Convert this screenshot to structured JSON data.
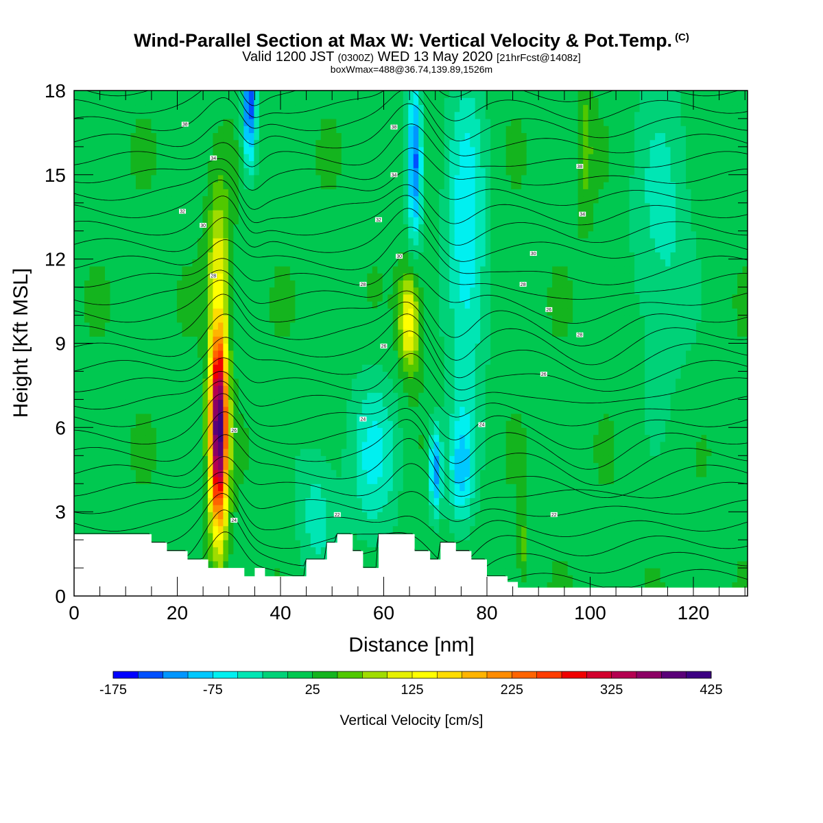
{
  "header": {
    "title": "Wind-Parallel Section at Max W: Vertical Velocity & Pot.Temp.",
    "copyright": "(C)",
    "valid_prefix": "Valid 1200 JST",
    "valid_utc": "(0300Z)",
    "valid_date": "WED 13 May 2020",
    "forecast_info": "[21hrFcst@1408z]",
    "box_info": "boxWmax=488@36.74,139.89,1526m"
  },
  "chart_data": {
    "type": "heatmap",
    "xlabel": "Distance [nm]",
    "ylabel": "Height [Kft MSL]",
    "xlim": [
      0,
      130.5
    ],
    "ylim": [
      0,
      18
    ],
    "x_ticks": [
      0,
      20,
      40,
      60,
      80,
      100,
      120
    ],
    "y_ticks": [
      0,
      3,
      6,
      9,
      12,
      15,
      18
    ],
    "x_tick_labels": [
      "0",
      "20",
      "40",
      "60",
      "80",
      "100",
      "120"
    ],
    "y_tick_labels": [
      "0",
      "3",
      "6",
      "9",
      "12",
      "15",
      "18"
    ],
    "colorbar": {
      "label": "Vertical Velocity [cm/s]",
      "min": -175,
      "max": 425,
      "step": 25,
      "tick_values": [
        -175,
        -75,
        25,
        125,
        225,
        325,
        425
      ],
      "tick_labels": [
        "-175",
        "-75",
        "25",
        "125",
        "225",
        "325",
        "425"
      ],
      "colors": [
        "#0000ff",
        "#0050ff",
        "#0096ff",
        "#00c8ff",
        "#00f0f0",
        "#00e6b4",
        "#00d278",
        "#00c850",
        "#14b41e",
        "#50c800",
        "#a0dc00",
        "#e6f000",
        "#ffff00",
        "#ffdc00",
        "#ffb400",
        "#ff8c00",
        "#ff6400",
        "#ff3c00",
        "#f00000",
        "#d2002d",
        "#b40050",
        "#8c0064",
        "#5a0078",
        "#3c0082"
      ]
    },
    "updraft_cores": [
      {
        "x": 28,
        "z": 6.0,
        "w": 425
      },
      {
        "x": 65,
        "z": 9.8,
        "w": 150
      }
    ],
    "downdraft_cores": [
      {
        "x": 34,
        "z": 17.5,
        "w": -150
      },
      {
        "x": 66,
        "z": 15.5,
        "w": -140
      },
      {
        "x": 70,
        "z": 4.5,
        "w": -120
      }
    ],
    "terrain_top": [
      {
        "x": 0,
        "z": 2.2
      },
      {
        "x": 12,
        "z": 2.2
      },
      {
        "x": 15,
        "z": 1.9
      },
      {
        "x": 18,
        "z": 1.6
      },
      {
        "x": 22,
        "z": 1.3
      },
      {
        "x": 26,
        "z": 1.0
      },
      {
        "x": 30,
        "z": 1.0
      },
      {
        "x": 33,
        "z": 0.7
      },
      {
        "x": 35,
        "z": 1.0
      },
      {
        "x": 37,
        "z": 0.7
      },
      {
        "x": 41,
        "z": 0.7
      },
      {
        "x": 45,
        "z": 1.3
      },
      {
        "x": 49,
        "z": 1.9
      },
      {
        "x": 51,
        "z": 2.2
      },
      {
        "x": 54,
        "z": 1.6
      },
      {
        "x": 56,
        "z": 1.0
      },
      {
        "x": 59,
        "z": 2.2
      },
      {
        "x": 63,
        "z": 2.2
      },
      {
        "x": 66,
        "z": 1.6
      },
      {
        "x": 69,
        "z": 1.3
      },
      {
        "x": 71,
        "z": 1.9
      },
      {
        "x": 74,
        "z": 1.6
      },
      {
        "x": 77,
        "z": 1.3
      },
      {
        "x": 80,
        "z": 0.7
      },
      {
        "x": 84,
        "z": 0.5
      },
      {
        "x": 86,
        "z": 0.3
      },
      {
        "x": 130.5,
        "z": 0.3
      }
    ],
    "theta_contour_labels": [
      "38",
      "34",
      "32",
      "30",
      "28",
      "26",
      "24",
      "22"
    ]
  }
}
